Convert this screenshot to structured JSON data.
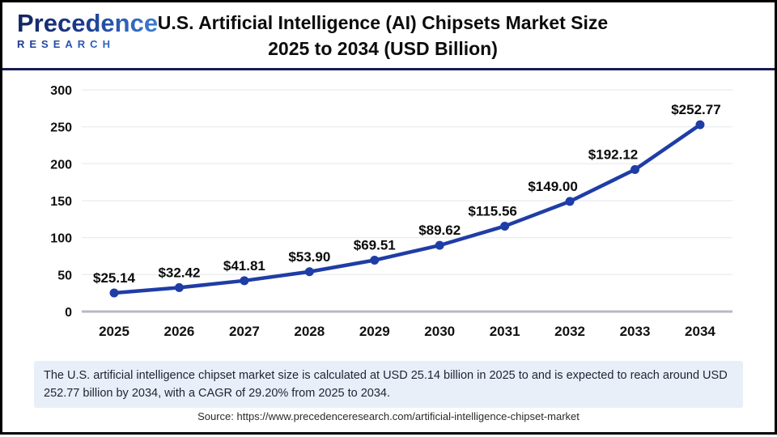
{
  "header": {
    "logo": {
      "name": "Precedence",
      "sub": "RESEARCH"
    },
    "title_line1": "U.S. Artificial Intelligence (AI) Chipsets Market Size",
    "title_line2": "2025 to 2034 (USD Billion)"
  },
  "chart_data": {
    "type": "line",
    "title": "U.S. Artificial Intelligence (AI) Chipsets Market Size 2025 to 2034 (USD Billion)",
    "categories": [
      "2025",
      "2026",
      "2027",
      "2028",
      "2029",
      "2030",
      "2031",
      "2032",
      "2033",
      "2034"
    ],
    "values": [
      25.14,
      32.42,
      41.81,
      53.9,
      69.51,
      89.62,
      115.56,
      149.0,
      192.12,
      252.77
    ],
    "point_labels": [
      "$25.14",
      "$32.42",
      "$41.81",
      "$53.90",
      "$69.51",
      "$89.62",
      "$115.56",
      "$149.00",
      "$192.12",
      "$252.77"
    ],
    "xlabel": "",
    "ylabel": "",
    "ylim": [
      0,
      300
    ],
    "yticks": [
      0,
      50,
      100,
      150,
      200,
      250,
      300
    ],
    "grid": true,
    "legend": "none",
    "label_dx": [
      0,
      0,
      0,
      0,
      0,
      0,
      -15,
      -21,
      -27,
      -5
    ]
  },
  "colors": {
    "line": "#1f3da6",
    "marker": "#1f3da6",
    "grid": "#eceef2",
    "axis": "#b7bac0",
    "note_bg": "#e9eff9",
    "divider": "#191b55",
    "logo_dark": "#13265e",
    "logo_light": "#3f82d8"
  },
  "footer": {
    "note": "The U.S. artificial intelligence chipset market size is calculated at USD 25.14 billion in 2025 to and is expected to reach around USD 252.77 billion by 2034, with a CAGR of 29.20% from 2025 to 2034.",
    "source": "Source: https://www.precedenceresearch.com/artificial-intelligence-chipset-market"
  }
}
